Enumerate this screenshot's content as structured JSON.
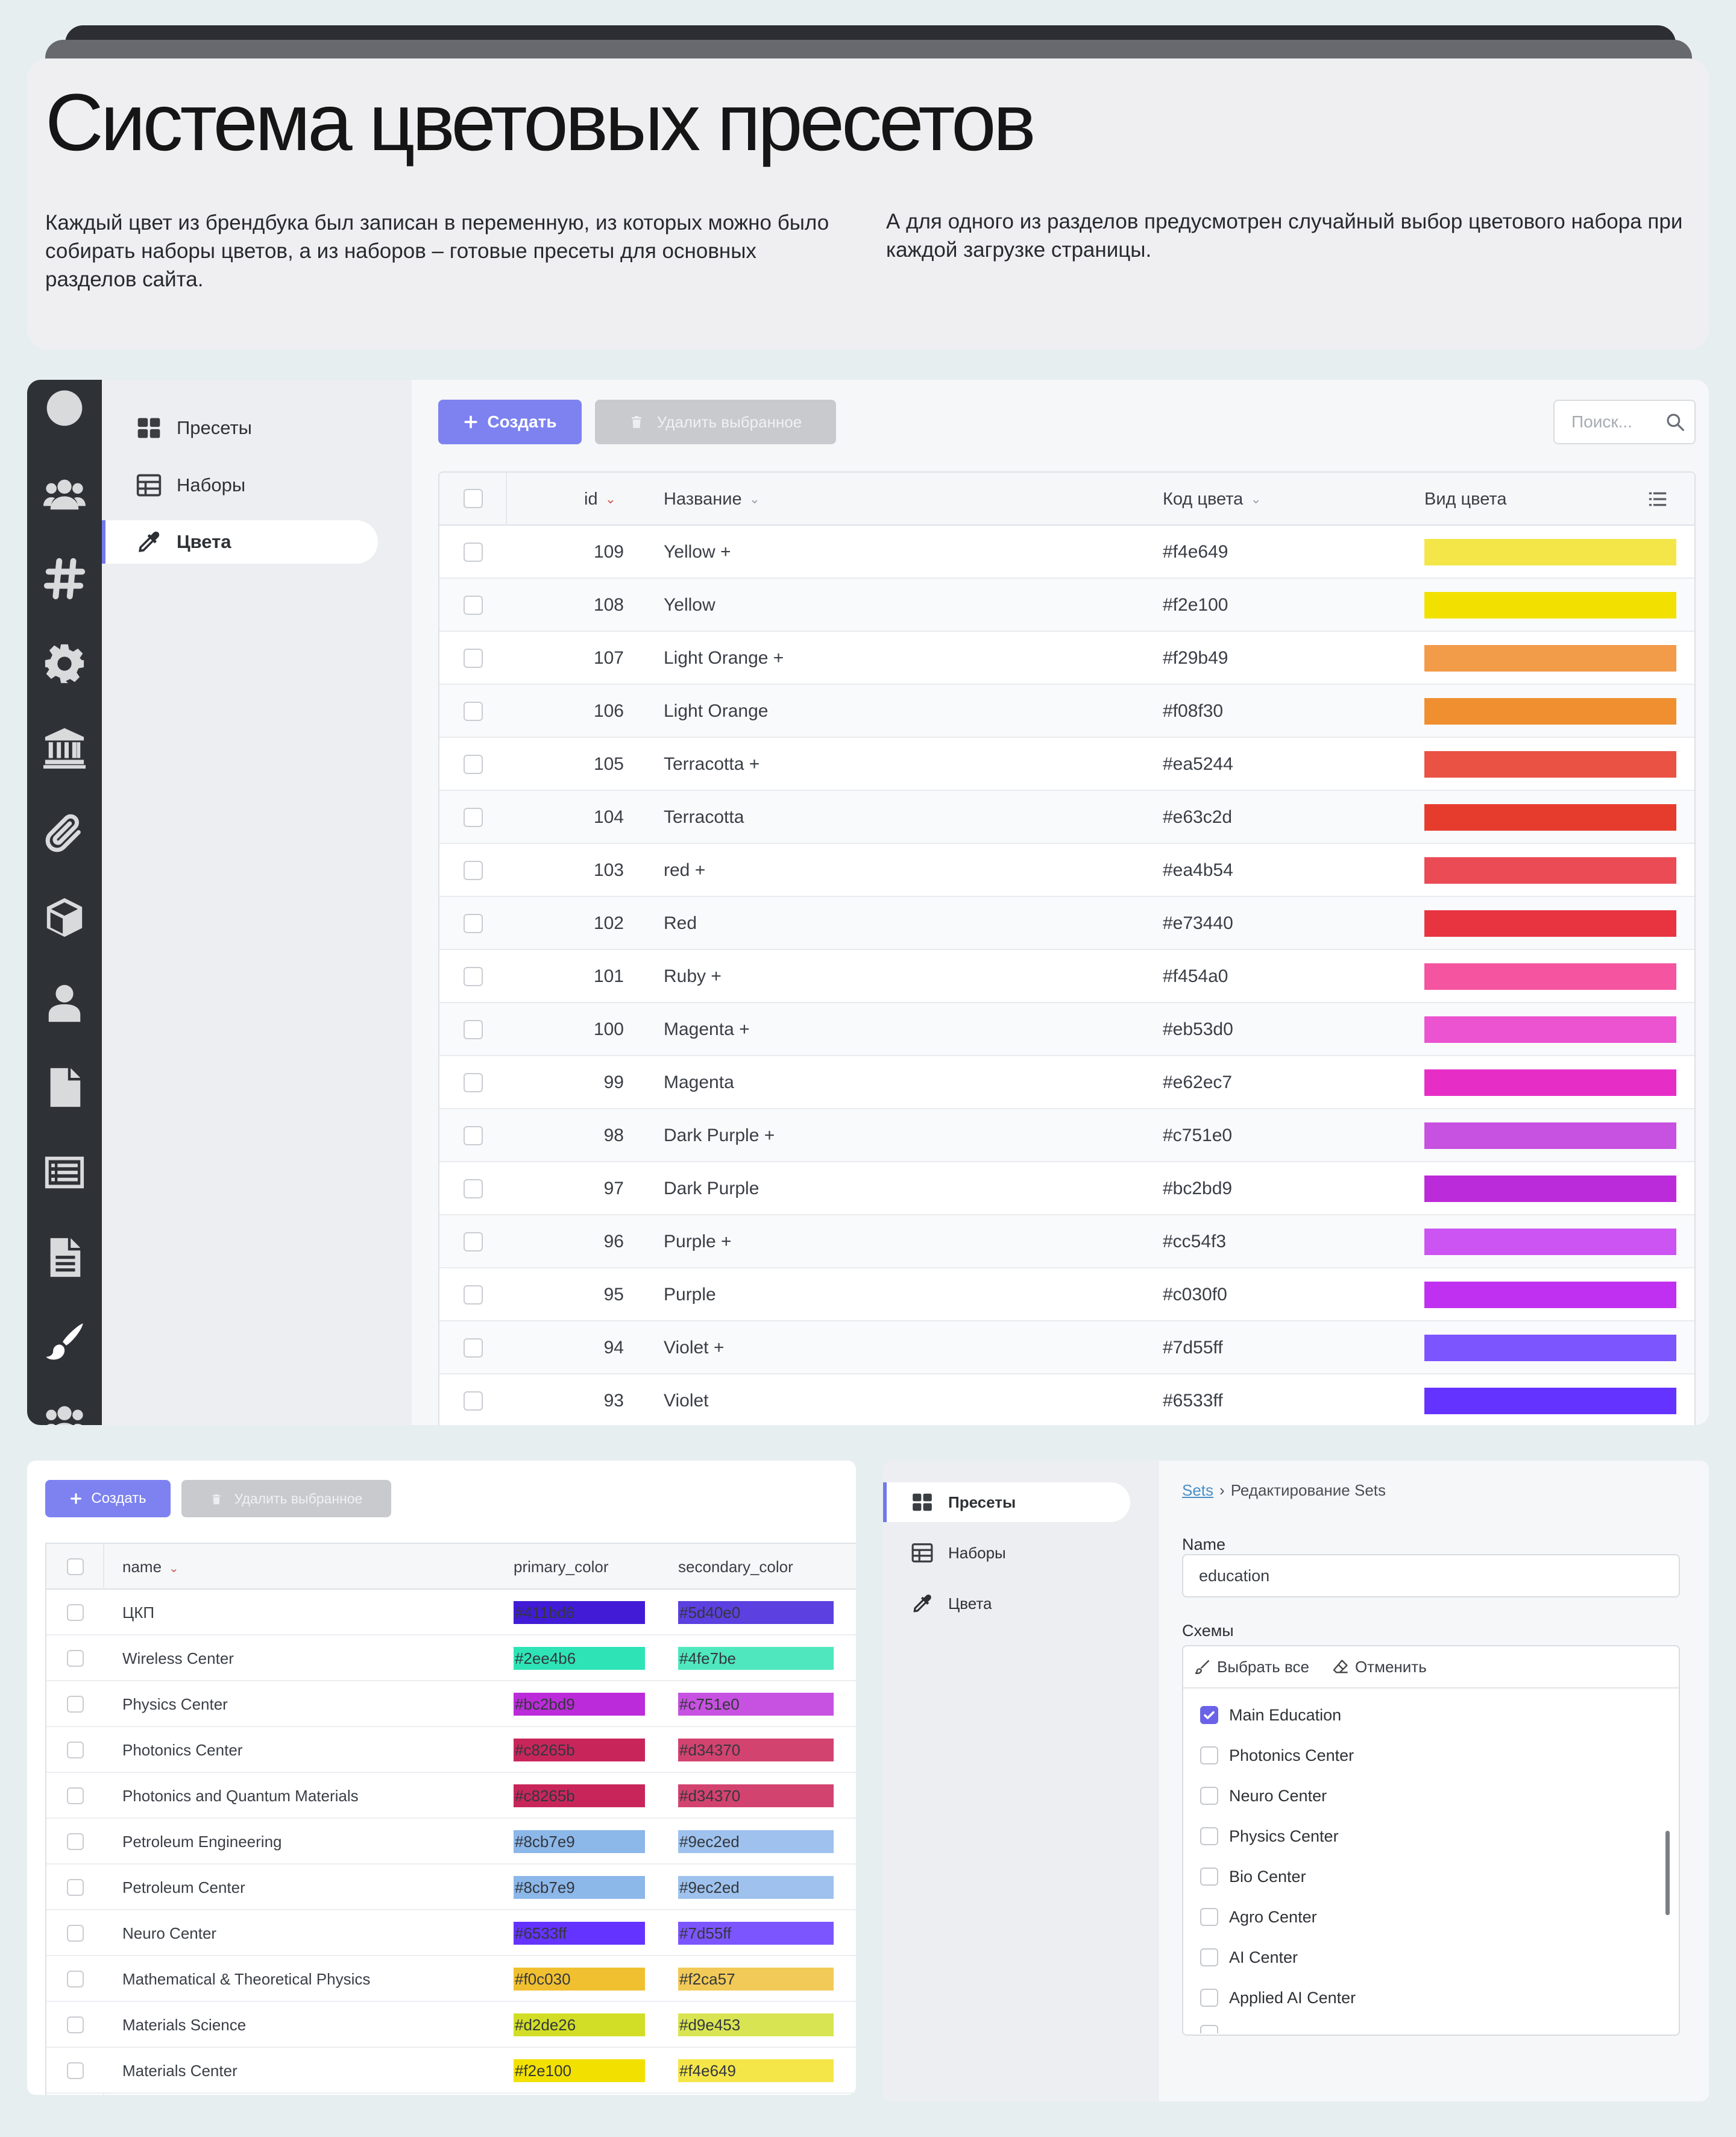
{
  "header": {
    "title": "Система цветовых пресетов",
    "desc_left": "Каждый цвет из брендбука был записан в переменную, из которых можно было собирать наборы цветов, а из наборов – готовые пресеты для основных разделов сайта.",
    "desc_right": "А для одного из разделов предусмотрен случайный выбор цветового набора при каждой загрузке страницы."
  },
  "admin_colors": {
    "rail_icons": [
      "circle-avatar-icon",
      "users-icon",
      "hashtag-icon",
      "gear-icon",
      "bank-icon",
      "paperclip-icon",
      "cube-icon",
      "user-icon",
      "file-icon",
      "list-icon",
      "document-icon",
      "paintbrush-icon",
      "users-icon"
    ],
    "subnav": [
      {
        "label": "Пресеты",
        "icon": "grid-icon"
      },
      {
        "label": "Наборы",
        "icon": "table-icon"
      },
      {
        "label": "Цвета",
        "icon": "eyedropper-icon"
      }
    ],
    "create_label": "Создать",
    "delete_label": "Удалить выбранное",
    "search_placeholder": "Поиск...",
    "columns": {
      "id": "id",
      "name": "Название",
      "code": "Код цвета",
      "view": "Вид цвета"
    },
    "rows": [
      {
        "id": "109",
        "name": "Yellow +",
        "code": "#f4e649",
        "color": "#f4e649"
      },
      {
        "id": "108",
        "name": "Yellow",
        "code": "#f2e100",
        "color": "#f2e100"
      },
      {
        "id": "107",
        "name": "Light Orange +",
        "code": "#f29b49",
        "color": "#f29b49"
      },
      {
        "id": "106",
        "name": "Light Orange",
        "code": "#f08f30",
        "color": "#f08f30"
      },
      {
        "id": "105",
        "name": "Terracotta +",
        "code": "#ea5244",
        "color": "#ea5244"
      },
      {
        "id": "104",
        "name": "Terracotta",
        "code": "#e63c2d",
        "color": "#e63c2d"
      },
      {
        "id": "103",
        "name": "red +",
        "code": "#ea4b54",
        "color": "#ea4b54"
      },
      {
        "id": "102",
        "name": "Red",
        "code": "#e73440",
        "color": "#e73440"
      },
      {
        "id": "101",
        "name": "Ruby +",
        "code": "#f454a0",
        "color": "#f454a0"
      },
      {
        "id": "100",
        "name": "Magenta +",
        "code": "#eb53d0",
        "color": "#eb53d0"
      },
      {
        "id": "99",
        "name": "Magenta",
        "code": "#e62ec7",
        "color": "#e62ec7"
      },
      {
        "id": "98",
        "name": "Dark Purple +",
        "code": "#c751e0",
        "color": "#c751e0"
      },
      {
        "id": "97",
        "name": "Dark Purple",
        "code": "#bc2bd9",
        "color": "#bc2bd9"
      },
      {
        "id": "96",
        "name": "Purple +",
        "code": "#cc54f3",
        "color": "#cc54f3"
      },
      {
        "id": "95",
        "name": "Purple",
        "code": "#c030f0",
        "color": "#c030f0"
      },
      {
        "id": "94",
        "name": "Violet +",
        "code": "#7d55ff",
        "color": "#7d55ff"
      },
      {
        "id": "93",
        "name": "Violet",
        "code": "#6533ff",
        "color": "#6533ff"
      }
    ]
  },
  "admin_sets": {
    "create_label": "Создать",
    "delete_label": "Удалить выбранное",
    "columns": {
      "name": "name",
      "primary": "primary_color",
      "secondary": "secondary_color"
    },
    "rows": [
      {
        "name": "ЦКП",
        "primary": "#411bd6",
        "secondary": "#5d40e0"
      },
      {
        "name": "Wireless Center",
        "primary": "#2ee4b6",
        "secondary": "#4fe7be"
      },
      {
        "name": "Physics Center",
        "primary": "#bc2bd9",
        "secondary": "#c751e0"
      },
      {
        "name": "Photonics Center",
        "primary": "#c8265b",
        "secondary": "#d34370"
      },
      {
        "name": "Photonics and Quantum Materials",
        "primary": "#c8265b",
        "secondary": "#d34370"
      },
      {
        "name": "Petroleum Engineering",
        "primary": "#8cb7e9",
        "secondary": "#9ec2ed"
      },
      {
        "name": "Petroleum Center",
        "primary": "#8cb7e9",
        "secondary": "#9ec2ed"
      },
      {
        "name": "Neuro Center",
        "primary": "#6533ff",
        "secondary": "#7d55ff"
      },
      {
        "name": "Mathematical & Theoretical Physics",
        "primary": "#f0c030",
        "secondary": "#f2ca57"
      },
      {
        "name": "Materials Science",
        "primary": "#d2de26",
        "secondary": "#d9e453"
      },
      {
        "name": "Materials Center",
        "primary": "#f2e100",
        "secondary": "#f4e649"
      }
    ]
  },
  "admin_edit": {
    "subnav": [
      {
        "label": "Пресеты",
        "icon": "grid-icon"
      },
      {
        "label": "Наборы",
        "icon": "table-icon"
      },
      {
        "label": "Цвета",
        "icon": "eyedropper-icon"
      }
    ],
    "breadcrumb_link": "Sets",
    "breadcrumb_sep": "›",
    "breadcrumb_current": "Редактирование Sets",
    "name_label": "Name",
    "name_value": "education",
    "schemes_label": "Схемы",
    "select_all": "Выбрать все",
    "cancel": "Отменить",
    "schemes": [
      {
        "label": "Main Education",
        "checked": true
      },
      {
        "label": "Photonics Center",
        "checked": false
      },
      {
        "label": "Neuro Center",
        "checked": false
      },
      {
        "label": "Physics Center",
        "checked": false
      },
      {
        "label": "Bio Center",
        "checked": false
      },
      {
        "label": "Agro Center",
        "checked": false
      },
      {
        "label": "AI Center",
        "checked": false
      },
      {
        "label": "Applied AI Center",
        "checked": false
      }
    ],
    "accent": "#6a63e8"
  }
}
